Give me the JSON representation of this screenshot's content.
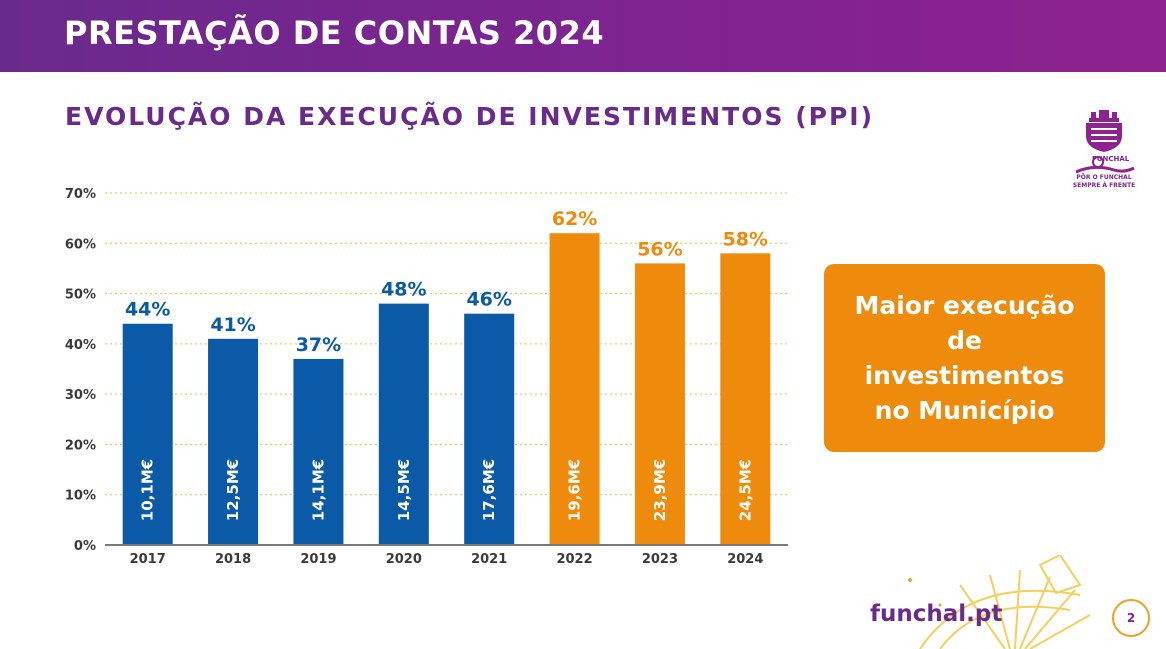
{
  "header": {
    "title": "PRESTAÇÃO DE CONTAS 2024"
  },
  "section": {
    "title": "EVOLUÇÃO DA EXECUÇÃO DE INVESTIMENTOS (PPI)"
  },
  "highlight": {
    "text": "Maior execução de investimentos no Município"
  },
  "logo": {
    "brand": "FUNCHAL",
    "tagline_line1": "PÔR O FUNCHAL",
    "tagline_line2": "SEMPRE À FRENTE"
  },
  "footer": {
    "url": "funchal.pt",
    "page_number": "2"
  },
  "colors": {
    "purple": "#6a2a8c",
    "blue": "#0a5aa8",
    "orange": "#ee8a0c"
  },
  "chart_data": {
    "type": "bar",
    "title": "",
    "xlabel": "",
    "ylabel": "",
    "ylim": [
      0,
      70
    ],
    "y_ticks": [
      "0%",
      "10%",
      "20%",
      "30%",
      "40%",
      "50%",
      "60%",
      "70%"
    ],
    "y_tick_values": [
      0,
      10,
      20,
      30,
      40,
      50,
      60,
      70
    ],
    "grid": true,
    "categories": [
      "2017",
      "2018",
      "2019",
      "2020",
      "2021",
      "2022",
      "2023",
      "2024"
    ],
    "values": [
      44,
      41,
      37,
      48,
      46,
      62,
      56,
      58
    ],
    "value_labels": [
      "44%",
      "41%",
      "37%",
      "48%",
      "46%",
      "62%",
      "56%",
      "58%"
    ],
    "amount_labels": [
      "10,1M€",
      "12,5M€",
      "14,1M€",
      "14,5M€",
      "17,6M€",
      "19,6M€",
      "23,9M€",
      "24,5M€"
    ],
    "bar_colors": [
      "#0a5aa8",
      "#0a5aa8",
      "#0a5aa8",
      "#0a5aa8",
      "#0a5aa8",
      "#ee8a0c",
      "#ee8a0c",
      "#ee8a0c"
    ]
  }
}
